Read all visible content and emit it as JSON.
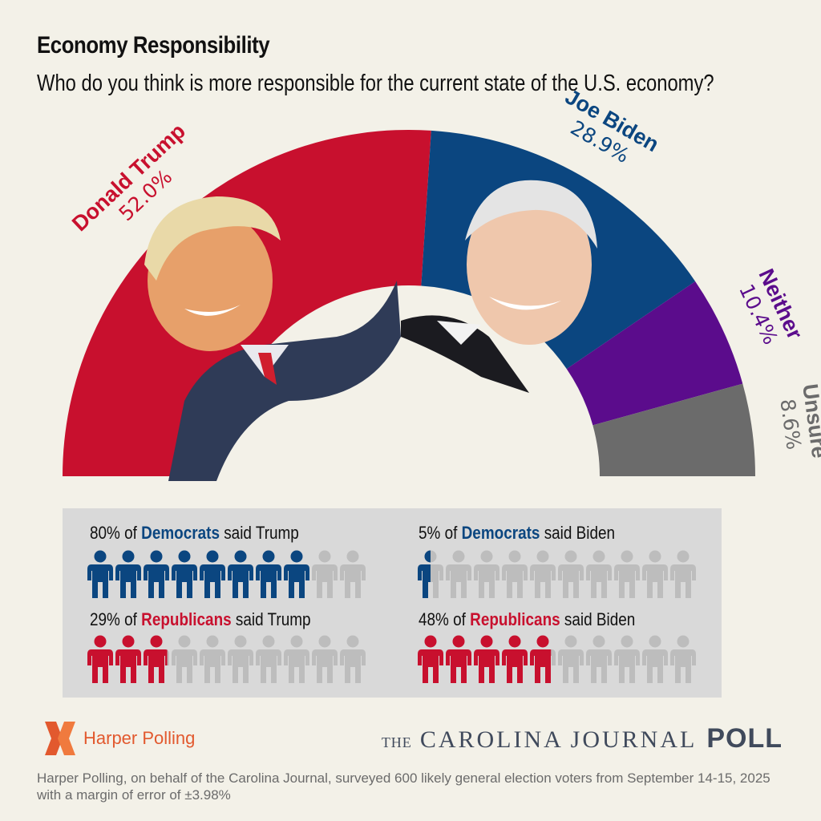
{
  "header": {
    "title": "Economy Responsibility",
    "subtitle": "Who do you think is more responsible for the current state of the U.S. economy?"
  },
  "chart_data": [
    {
      "type": "pie",
      "title": "Economy Responsibility",
      "subtitle": "Who do you think is more responsible for the current state of the U.S. economy?",
      "shape": "half-donut",
      "categories": [
        "Donald Trump",
        "Joe Biden",
        "Neither",
        "Unsure"
      ],
      "values": [
        52.0,
        28.9,
        10.4,
        8.6
      ],
      "labels": [
        "52.0%",
        "28.9%",
        "10.4%",
        "8.6%"
      ],
      "colors": [
        "#c8102e",
        "#0b4680",
        "#5b0c8c",
        "#6b6b6b"
      ]
    },
    {
      "type": "bar",
      "style": "pictogram",
      "units_per_row": 10,
      "rows": [
        {
          "group": "Democrats",
          "candidate": "Trump",
          "value": 80,
          "prefix": "80% of ",
          "group_label": "Democrats",
          "suffix": " said Trump",
          "color": "#0b4680"
        },
        {
          "group": "Democrats",
          "candidate": "Biden",
          "value": 5,
          "prefix": "5% of ",
          "group_label": "Democrats",
          "suffix": " said Biden",
          "color": "#0b4680"
        },
        {
          "group": "Republicans",
          "candidate": "Trump",
          "value": 29,
          "prefix": "29% of ",
          "group_label": "Republicans",
          "suffix": " said Trump",
          "color": "#c8102e"
        },
        {
          "group": "Republicans",
          "candidate": "Biden",
          "value": 48,
          "prefix": "48% of ",
          "group_label": "Republicans",
          "suffix": " said Biden",
          "color": "#c8102e"
        }
      ]
    }
  ],
  "footer": {
    "harper_logo_text": "Harper Polling",
    "cj_the": "THE",
    "cj_name": "CAROLINA JOURNAL",
    "cj_poll": "POLL",
    "note": "Harper Polling, on behalf of the Carolina Journal, surveyed 600 likely general election voters from September 14-15, 2025 with a margin of error of ±3.98%"
  },
  "colors": {
    "background": "#f3f1e8",
    "inactive_icon": "#bdbdbd",
    "harper_orange": "#e2592e",
    "cj_navy": "#404a5c"
  },
  "icons": [
    "person-icon",
    "harper-x-logo-icon"
  ]
}
